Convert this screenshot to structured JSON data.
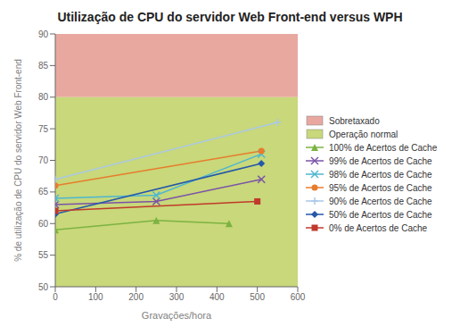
{
  "chart_data": {
    "type": "line",
    "title": "Utilização de CPU do servidor Web Front-end versus WPH",
    "xlabel": "Gravações/hora",
    "ylabel": "% de utilização de CPU do servidor Web Front-end",
    "xlim": [
      0,
      600
    ],
    "ylim": [
      50,
      90
    ],
    "xticks": [
      0,
      100,
      200,
      300,
      400,
      500,
      600
    ],
    "yticks": [
      50,
      55,
      60,
      65,
      70,
      75,
      80,
      85,
      90
    ],
    "grid": false,
    "legend": "right",
    "zones": [
      {
        "name": "Sobretaxado",
        "color": "#E8A8A0",
        "ymin": 80,
        "ymax": 90
      },
      {
        "name": "Operação normal",
        "color": "#C8D87A",
        "ymin": 50,
        "ymax": 80
      }
    ],
    "series": [
      {
        "name": "100% de Acertos de Cache",
        "color": "#7CB342",
        "marker": "triangle",
        "line_style": "solid",
        "x": [
          0,
          250,
          430
        ],
        "y": [
          59,
          60.5,
          60
        ]
      },
      {
        "name": "99% de Acertos de Cache",
        "color": "#7B52A8",
        "marker": "x",
        "line_style": "solid",
        "x": [
          0,
          250,
          510
        ],
        "y": [
          63,
          63.5,
          67
        ]
      },
      {
        "name": "98% de Acertos de Cache",
        "color": "#4DB6D0",
        "marker": "x",
        "line_style": "solid",
        "x": [
          0,
          250,
          510
        ],
        "y": [
          64,
          64.5,
          71
        ]
      },
      {
        "name": "95% de Acertos de Cache",
        "color": "#E87C2C",
        "marker": "circle",
        "line_style": "solid",
        "x": [
          0,
          510
        ],
        "y": [
          66,
          71.5
        ]
      },
      {
        "name": "90% de Acertos de Cache",
        "color": "#AAC8E8",
        "marker": "plus",
        "line_style": "solid",
        "x": [
          0,
          550
        ],
        "y": [
          67,
          76
        ]
      },
      {
        "name": "50% de Acertos de Cache",
        "color": "#2458A8",
        "marker": "diamond",
        "line_style": "solid",
        "x": [
          0,
          510
        ],
        "y": [
          61.5,
          69.5
        ]
      },
      {
        "name": "0% de Acertos de Cache",
        "color": "#C0392B",
        "marker": "square",
        "line_style": "solid",
        "x": [
          0,
          500
        ],
        "y": [
          62,
          63.5
        ]
      }
    ]
  }
}
